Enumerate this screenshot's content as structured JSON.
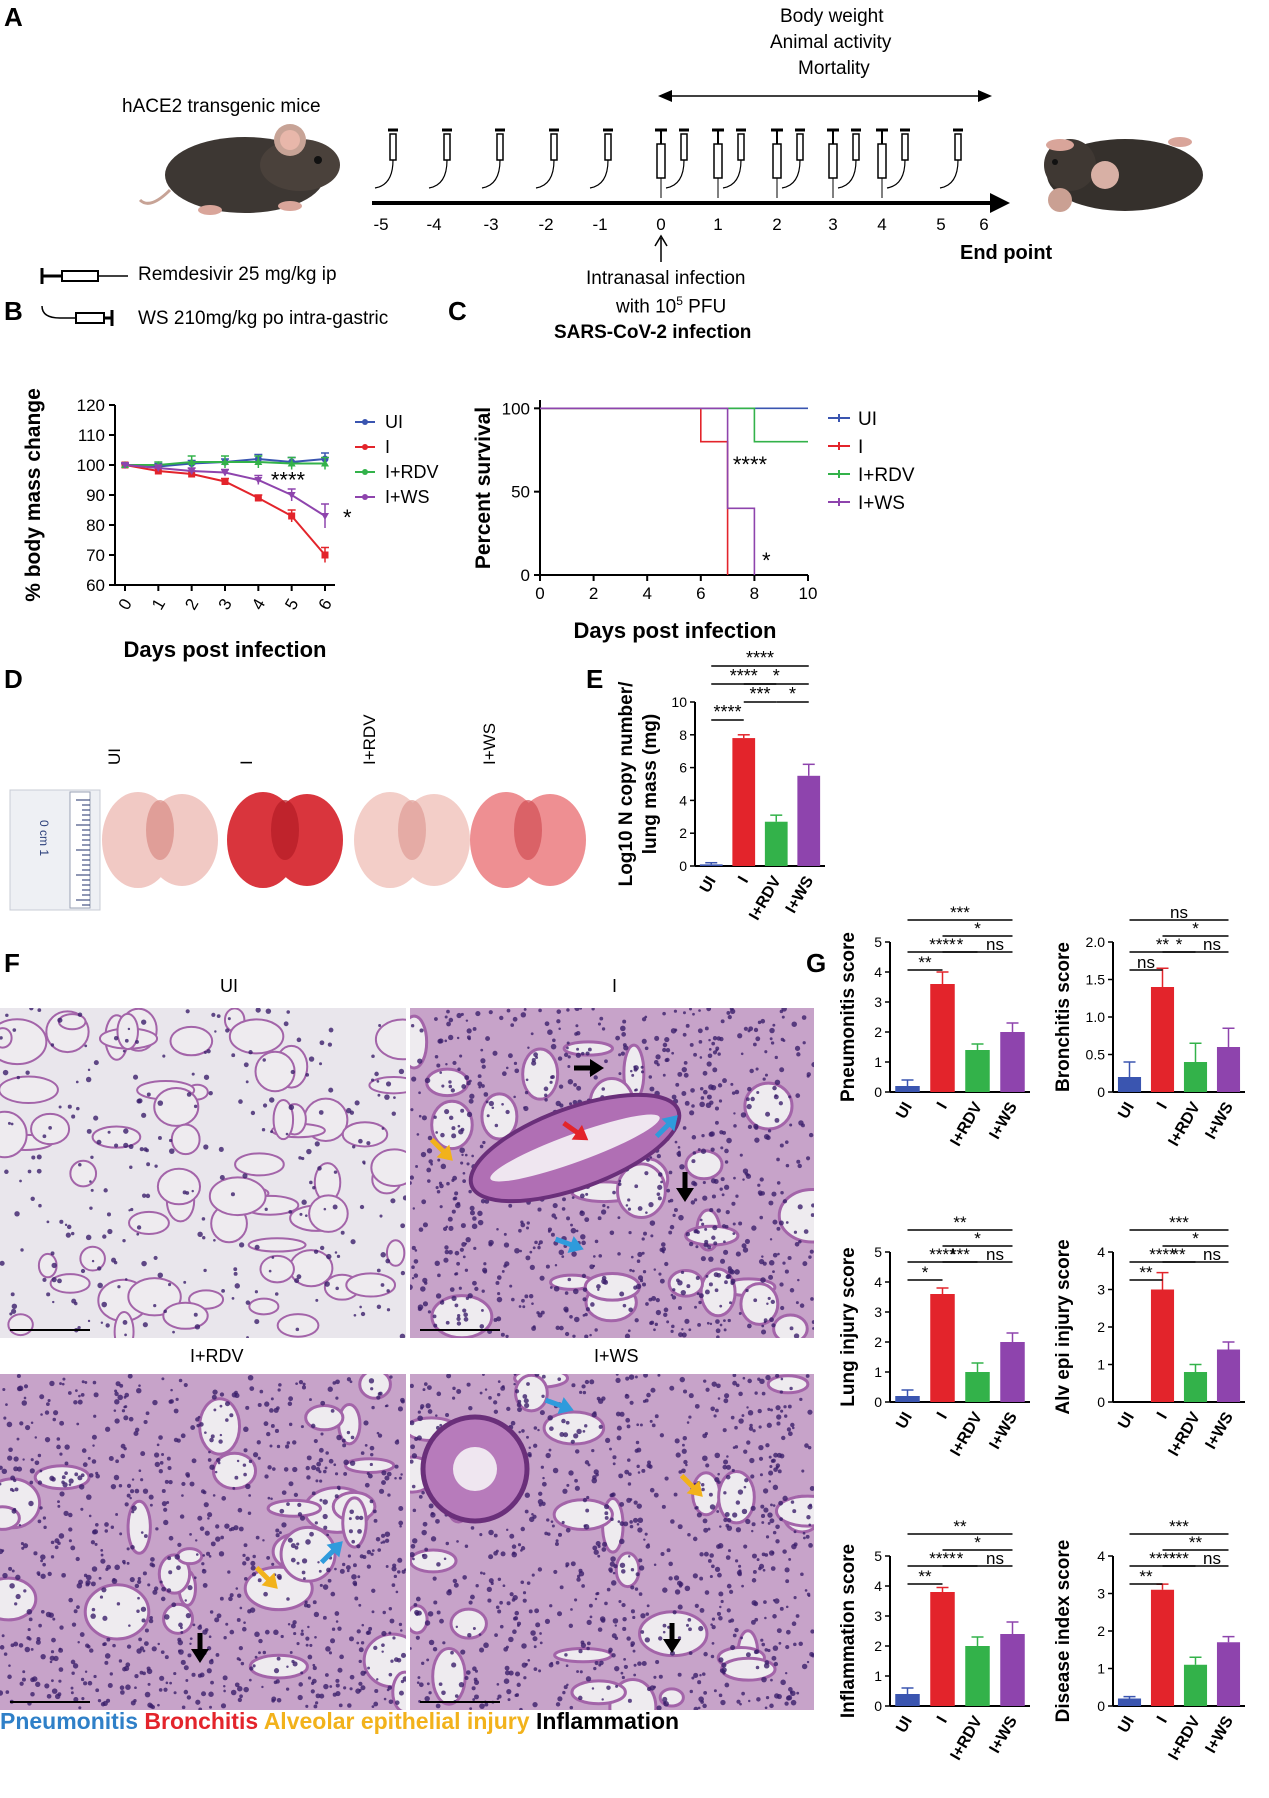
{
  "panels": {
    "A": "A",
    "B": "B",
    "C": "C",
    "D": "D",
    "E": "E",
    "F": "F",
    "G": "G"
  },
  "panel_a": {
    "mice_label": "hACE2 transgenic mice",
    "monitor_lines": [
      "Body weight",
      "Animal activity",
      "Mortality"
    ],
    "days": [
      "-5",
      "-4",
      "-3",
      "-2",
      "-1",
      "0",
      "1",
      "2",
      "3",
      "4",
      "5",
      "6"
    ],
    "end_point": "End point",
    "infection_lines": [
      "Intranasal infection",
      "with 10",
      "5",
      " PFU"
    ],
    "infection_bold": "SARS-CoV-2 infection",
    "legend_rdv": "Remdesivir 25 mg/kg ip",
    "legend_ws": "WS 210mg/kg po intra-gastric"
  },
  "colors": {
    "UI": "#3a55b0",
    "I": "#e3242b",
    "I+RDV": "#33b24a",
    "I+WS": "#8e44ad"
  },
  "chart_data": [
    {
      "id": "B",
      "type": "line",
      "xlabel": "Days post infection",
      "ylabel": "% body mass change",
      "ylim": [
        60,
        120
      ],
      "yticks": [
        "60",
        "70",
        "80",
        "90",
        "100",
        "110",
        "120"
      ],
      "x": [
        "0",
        "1",
        "2",
        "3",
        "4",
        "5",
        "6"
      ],
      "series": [
        {
          "name": "UI",
          "values": [
            100,
            99.5,
            100.5,
            101,
            102,
            101,
            102
          ],
          "err": [
            0.5,
            1,
            1,
            1,
            1.5,
            1.5,
            2
          ]
        },
        {
          "name": "I",
          "values": [
            100,
            98,
            97,
            94.5,
            89,
            83,
            70
          ],
          "err": [
            0.5,
            1,
            1,
            1,
            1,
            2,
            2.5
          ]
        },
        {
          "name": "I+RDV",
          "values": [
            100,
            100,
            101,
            101,
            101,
            100.5,
            100.5
          ],
          "err": [
            0.5,
            1,
            2,
            2,
            2,
            2,
            2
          ]
        },
        {
          "name": "I+WS",
          "values": [
            100,
            99,
            98,
            97.5,
            95,
            90,
            83
          ],
          "err": [
            0.5,
            1,
            1,
            1,
            1.5,
            2,
            4
          ]
        }
      ],
      "annotations": [
        "****",
        "*"
      ],
      "legend": "top-right"
    },
    {
      "id": "C",
      "type": "line",
      "xlabel": "Days post infection",
      "ylabel": "Percent survival",
      "ylim": [
        0,
        105
      ],
      "yticks": [
        "0",
        "50",
        "100"
      ],
      "xticks": [
        "0",
        "2",
        "4",
        "6",
        "8",
        "10"
      ],
      "series": [
        {
          "name": "UI",
          "steps": [
            [
              0,
              100
            ],
            [
              10,
              100
            ]
          ]
        },
        {
          "name": "I",
          "steps": [
            [
              0,
              100
            ],
            [
              6,
              100
            ],
            [
              6,
              80
            ],
            [
              7,
              80
            ],
            [
              7,
              0
            ]
          ]
        },
        {
          "name": "I+RDV",
          "steps": [
            [
              0,
              100
            ],
            [
              8,
              100
            ],
            [
              8,
              80
            ],
            [
              10,
              80
            ]
          ]
        },
        {
          "name": "I+WS",
          "steps": [
            [
              0,
              100
            ],
            [
              7,
              100
            ],
            [
              7,
              40
            ],
            [
              8,
              40
            ],
            [
              8,
              0
            ]
          ]
        }
      ],
      "annotations": [
        "****",
        "*"
      ],
      "legend": "right"
    },
    {
      "id": "E",
      "type": "bar",
      "ylabel_lines": [
        "Log10 N copy number/",
        "lung mass (mg)"
      ],
      "categories": [
        "UI",
        "I",
        "I+RDV",
        "I+WS"
      ],
      "values": [
        0.1,
        7.8,
        2.7,
        5.5
      ],
      "err": [
        0.1,
        0.2,
        0.4,
        0.7
      ],
      "ylim": [
        0,
        10
      ],
      "yticks": [
        "0",
        "2",
        "4",
        "6",
        "8",
        "10"
      ],
      "sig": [
        {
          "a": 0,
          "b": 3,
          "label": "****"
        },
        {
          "a": 1,
          "b": 3,
          "label": "*"
        },
        {
          "a": 0,
          "b": 2,
          "label": "****"
        },
        {
          "a": 1,
          "b": 2,
          "label": "***"
        },
        {
          "a": 2,
          "b": 3,
          "label": "*"
        },
        {
          "a": 0,
          "b": 1,
          "label": "****"
        }
      ]
    },
    {
      "id": "G1",
      "type": "bar",
      "ylabel": "Pneumonitis score",
      "categories": [
        "UI",
        "I",
        "I+RDV",
        "I+WS"
      ],
      "values": [
        0.2,
        3.6,
        1.4,
        2.0
      ],
      "err": [
        0.2,
        0.4,
        0.2,
        0.3
      ],
      "ylim": [
        0,
        5
      ],
      "yticks": [
        "0",
        "1",
        "2",
        "3",
        "4",
        "5"
      ],
      "sig": [
        {
          "a": 0,
          "b": 3,
          "label": "***"
        },
        {
          "a": 1,
          "b": 3,
          "label": "*"
        },
        {
          "a": 0,
          "b": 2,
          "label": "****"
        },
        {
          "a": 1,
          "b": 2,
          "label": "*"
        },
        {
          "a": 2,
          "b": 3,
          "label": "ns"
        },
        {
          "a": 0,
          "b": 1,
          "label": "**"
        }
      ]
    },
    {
      "id": "G2",
      "type": "bar",
      "ylabel": "Bronchitis score",
      "categories": [
        "UI",
        "I",
        "I+RDV",
        "I+WS"
      ],
      "values": [
        0.2,
        1.4,
        0.4,
        0.6
      ],
      "err": [
        0.2,
        0.25,
        0.25,
        0.25
      ],
      "ylim": [
        0,
        2.0
      ],
      "yticks": [
        "0",
        "0.5",
        "1.0",
        "1.5",
        "2.0"
      ],
      "sig": [
        {
          "a": 0,
          "b": 3,
          "label": "ns"
        },
        {
          "a": 1,
          "b": 3,
          "label": "*"
        },
        {
          "a": 0,
          "b": 2,
          "label": "**"
        },
        {
          "a": 1,
          "b": 2,
          "label": "*"
        },
        {
          "a": 2,
          "b": 3,
          "label": "ns"
        },
        {
          "a": 0,
          "b": 1,
          "label": "ns"
        }
      ]
    },
    {
      "id": "G3",
      "type": "bar",
      "ylabel": "Lung injury score",
      "categories": [
        "UI",
        "I",
        "I+RDV",
        "I+WS"
      ],
      "values": [
        0.2,
        3.6,
        1.0,
        2.0
      ],
      "err": [
        0.2,
        0.2,
        0.3,
        0.3
      ],
      "ylim": [
        0,
        5
      ],
      "yticks": [
        "0",
        "1",
        "2",
        "3",
        "4",
        "5"
      ],
      "sig": [
        {
          "a": 0,
          "b": 3,
          "label": "**"
        },
        {
          "a": 1,
          "b": 3,
          "label": "*"
        },
        {
          "a": 0,
          "b": 2,
          "label": "****"
        },
        {
          "a": 1,
          "b": 2,
          "label": "***"
        },
        {
          "a": 2,
          "b": 3,
          "label": "ns"
        },
        {
          "a": 0,
          "b": 1,
          "label": "*"
        }
      ]
    },
    {
      "id": "G4",
      "type": "bar",
      "ylabel": "Alv epi injury score",
      "categories": [
        "UI",
        "I",
        "I+RDV",
        "I+WS"
      ],
      "values": [
        0,
        3.0,
        0.8,
        1.4
      ],
      "err": [
        0,
        0.45,
        0.2,
        0.2
      ],
      "ylim": [
        0,
        4
      ],
      "yticks": [
        "0",
        "1",
        "2",
        "3",
        "4"
      ],
      "sig": [
        {
          "a": 0,
          "b": 3,
          "label": "***"
        },
        {
          "a": 1,
          "b": 3,
          "label": "*"
        },
        {
          "a": 0,
          "b": 2,
          "label": "****"
        },
        {
          "a": 1,
          "b": 2,
          "label": "**"
        },
        {
          "a": 2,
          "b": 3,
          "label": "ns"
        },
        {
          "a": 0,
          "b": 1,
          "label": "**"
        }
      ]
    },
    {
      "id": "G5",
      "type": "bar",
      "ylabel": "Inflammation score",
      "categories": [
        "UI",
        "I",
        "I+RDV",
        "I+WS"
      ],
      "values": [
        0.4,
        3.8,
        2.0,
        2.4
      ],
      "err": [
        0.2,
        0.15,
        0.3,
        0.4
      ],
      "ylim": [
        0,
        5
      ],
      "yticks": [
        "0",
        "1",
        "2",
        "3",
        "4",
        "5"
      ],
      "sig": [
        {
          "a": 0,
          "b": 3,
          "label": "**"
        },
        {
          "a": 1,
          "b": 3,
          "label": "*"
        },
        {
          "a": 0,
          "b": 2,
          "label": "****"
        },
        {
          "a": 1,
          "b": 2,
          "label": "*"
        },
        {
          "a": 2,
          "b": 3,
          "label": "ns"
        },
        {
          "a": 0,
          "b": 1,
          "label": "**"
        }
      ]
    },
    {
      "id": "G6",
      "type": "bar",
      "ylabel": "Disease index score",
      "categories": [
        "UI",
        "I",
        "I+RDV",
        "I+WS"
      ],
      "values": [
        0.2,
        3.1,
        1.1,
        1.7
      ],
      "err": [
        0.05,
        0.15,
        0.2,
        0.15
      ],
      "ylim": [
        0,
        4
      ],
      "yticks": [
        "0",
        "1",
        "2",
        "3",
        "4"
      ],
      "sig": [
        {
          "a": 0,
          "b": 3,
          "label": "***"
        },
        {
          "a": 1,
          "b": 3,
          "label": "**"
        },
        {
          "a": 0,
          "b": 2,
          "label": "****"
        },
        {
          "a": 1,
          "b": 2,
          "label": "***"
        },
        {
          "a": 2,
          "b": 3,
          "label": "ns"
        },
        {
          "a": 0,
          "b": 1,
          "label": "**"
        }
      ]
    }
  ],
  "panel_d": {
    "labels": [
      "UI",
      "I",
      "I+RDV",
      "I+WS"
    ],
    "ruler_text": "0 cm 1"
  },
  "panel_f": {
    "titles": [
      "UI",
      "I",
      "I+RDV",
      "I+WS"
    ],
    "legend": [
      {
        "label": "Pneumonitis",
        "color": "#2f80c8"
      },
      {
        "label": "Bronchitis",
        "color": "#e3242b"
      },
      {
        "label": "Alveolar epithelial injury",
        "color": "#f2b21b"
      },
      {
        "label": "Inflammation",
        "color": "#000000"
      }
    ]
  }
}
